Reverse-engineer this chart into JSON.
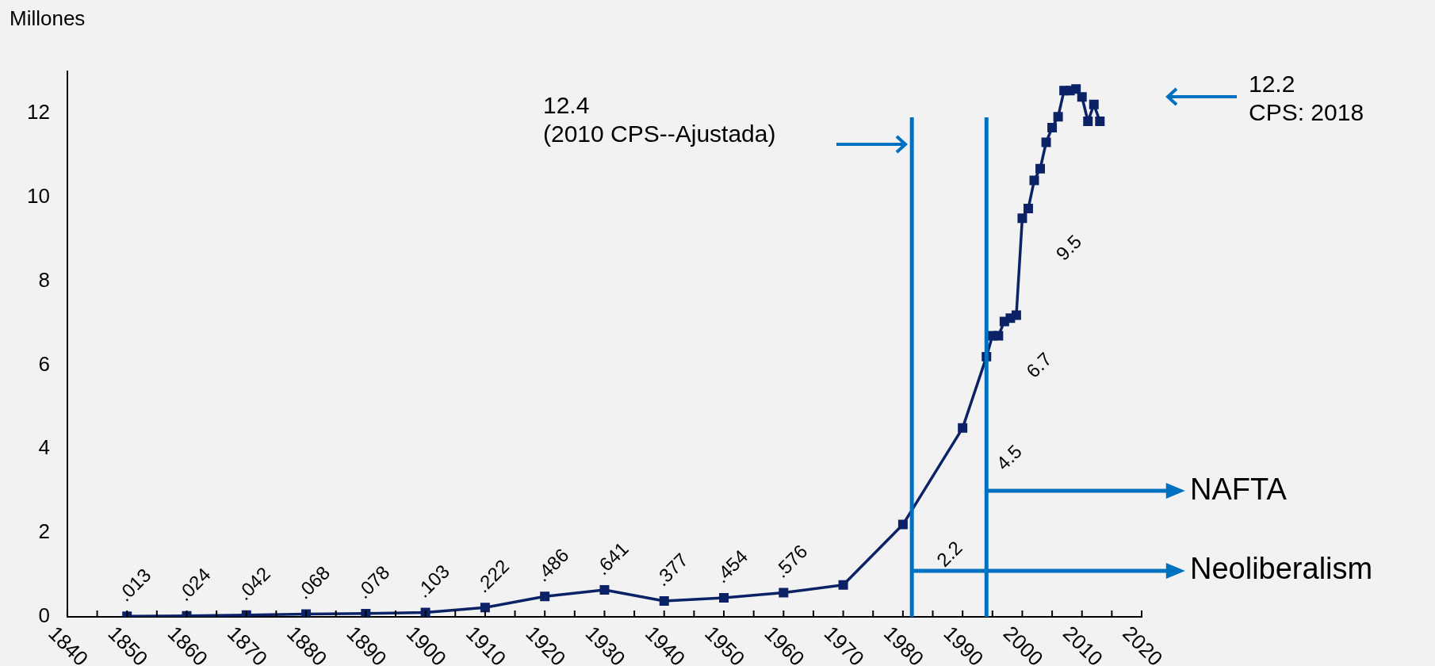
{
  "chart_data": {
    "type": "line",
    "ylabel": "Millones",
    "x": [
      1850,
      1860,
      1870,
      1880,
      1890,
      1900,
      1910,
      1920,
      1930,
      1940,
      1950,
      1960,
      1970,
      1980,
      1990,
      1994,
      1995,
      1996,
      1997,
      1998,
      1999,
      2000,
      2001,
      2002,
      2003,
      2004,
      2005,
      2006,
      2007,
      2008,
      2009,
      2010,
      2011,
      2012,
      2013
    ],
    "series": [
      {
        "color": "#0b2266",
        "values": [
          0.013,
          0.024,
          0.042,
          0.068,
          0.078,
          0.103,
          0.222,
          0.486,
          0.641,
          0.377,
          0.454,
          0.576,
          0.76,
          2.2,
          4.5,
          6.2,
          6.7,
          6.7,
          7.04,
          7.12,
          7.19,
          9.5,
          9.73,
          10.4,
          10.68,
          11.31,
          11.66,
          11.92,
          12.54,
          12.54,
          12.58,
          12.39,
          11.81,
          12.21,
          11.81
        ],
        "value_labels": [
          ".013",
          ".024",
          ".042",
          ".068",
          ".078",
          ".103",
          ".222",
          ".486",
          ".641",
          ".377",
          ".454",
          ".576",
          null,
          "2.2",
          "4.5",
          null,
          "6.7",
          null,
          null,
          null,
          null,
          "9.5",
          null,
          null,
          null,
          null,
          null,
          null,
          null,
          null,
          null,
          null,
          null,
          null,
          null
        ]
      }
    ],
    "marker": "square",
    "line_style": "solid",
    "grid": false,
    "legend": false,
    "xlim": [
      1840,
      2020
    ],
    "xticks": [
      1840,
      {
        "value": 1845,
        "label": null
      },
      1850,
      {
        "value": 1855,
        "label": null
      },
      1860,
      {
        "value": 1865,
        "label": null
      },
      1870,
      {
        "value": 1875,
        "label": null
      },
      1880,
      {
        "value": 1885,
        "label": null
      },
      1890,
      {
        "value": 1895,
        "label": null
      },
      1900,
      {
        "value": 1905,
        "label": null
      },
      1910,
      {
        "value": 1915,
        "label": null
      },
      1920,
      {
        "value": 1925,
        "label": null
      },
      1930,
      {
        "value": 1935,
        "label": null
      },
      1940,
      {
        "value": 1945,
        "label": null
      },
      1950,
      {
        "value": 1955,
        "label": null
      },
      1960,
      {
        "value": 1965,
        "label": null
      },
      1970,
      {
        "value": 1975,
        "label": null
      },
      1980,
      {
        "value": 1985,
        "label": null
      },
      1990,
      {
        "value": 1995,
        "label": null
      },
      2000,
      {
        "value": 2005,
        "label": null
      },
      2010,
      {
        "value": 2015,
        "label": null
      },
      2020
    ],
    "ylim": [
      0,
      13
    ],
    "yticks": [
      0,
      2,
      4,
      6,
      8,
      10,
      12
    ],
    "ref_lines": [
      {
        "axis": "x",
        "value": 1981.5,
        "color": "#0070c0"
      },
      {
        "axis": "x",
        "value": 1994,
        "color": "#0070c0"
      }
    ],
    "annotations": [
      {
        "text": "Neoliberalism",
        "x": 1981.5,
        "y": 1.1
      },
      {
        "text": "NAFTA",
        "x": 1994,
        "y": 3
      },
      "12.4\n(2010 CPS--Ajustada)",
      "12.2\nCPS: 2018"
    ]
  }
}
